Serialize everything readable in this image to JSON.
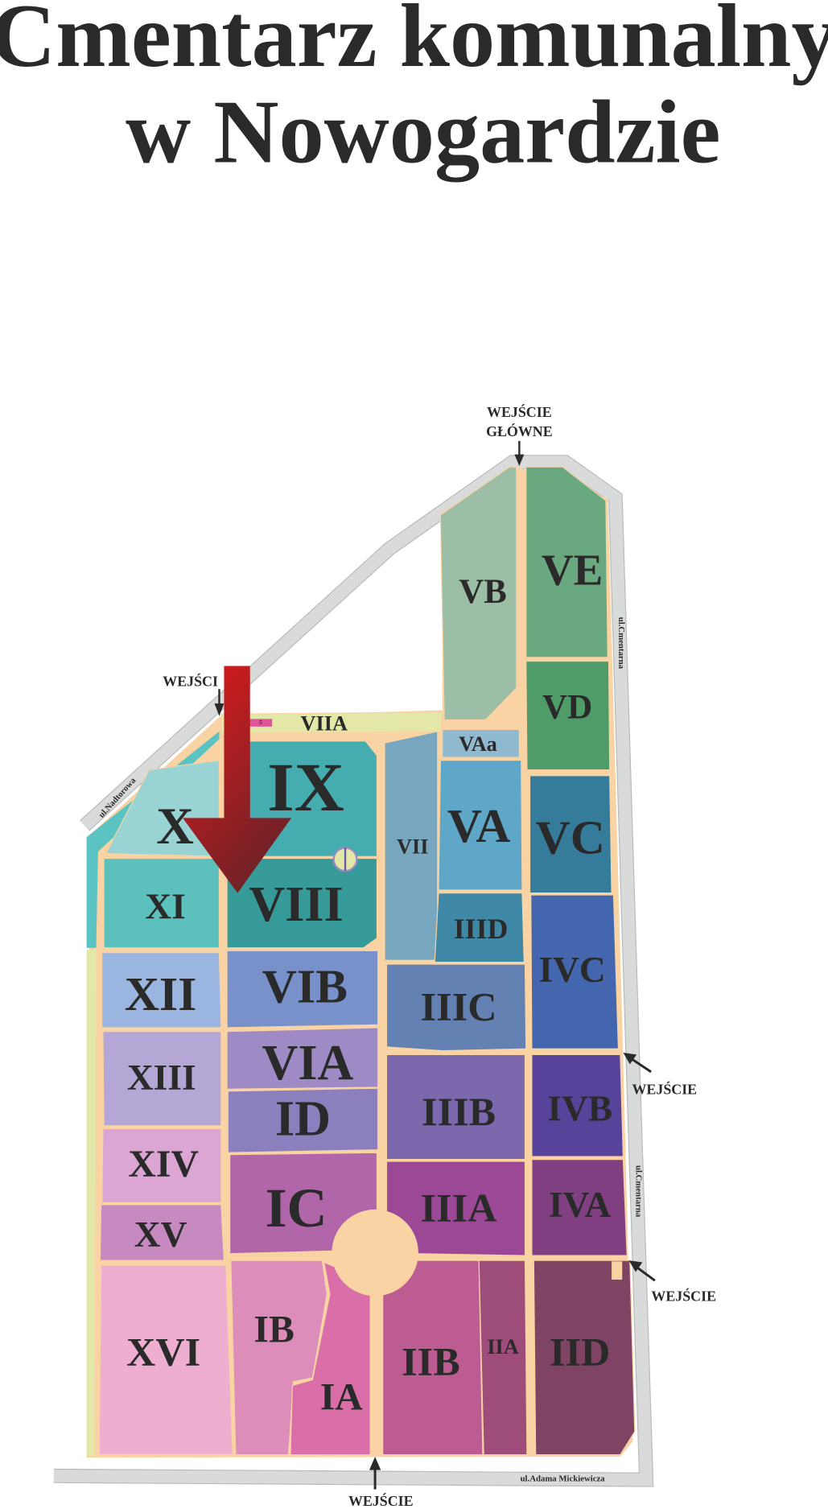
{
  "title": {
    "line1": "Cmentarz komunalny",
    "line2": "w Nowogardzie"
  },
  "colors": {
    "paths": "#f9d3a3",
    "road": "#d9dada",
    "arrow": "#c0181c",
    "plot_marker": "#e0559a"
  },
  "entrances": {
    "main_line1": "WEJŚCIE",
    "main_line2": "GŁÓWNE",
    "northwest": "WEJŚCI",
    "east_upper": "WEJŚCIE",
    "east_lower": "WEJŚCIE",
    "south": "WEJŚCIE"
  },
  "streets": {
    "nadtorowa": "ul.Nadtorowa",
    "cmentarna_upper": "ul.Cmentarna",
    "cmentarna_lower": "ul.Cmentarna",
    "mickiewicza": "ul.Adama Mickiewicza"
  },
  "marker": {
    "icon": "red-down-arrow-location-icon",
    "plot_label": "5"
  },
  "sections": {
    "VB": {
      "label": "VB",
      "color": "#9dbea6"
    },
    "VE": {
      "label": "VE",
      "color": "#6aa87f"
    },
    "VD": {
      "label": "VD",
      "color": "#4f9c68"
    },
    "VIIA": {
      "label": "VIIA",
      "color": "#e3e8a8"
    },
    "VAa": {
      "label": "VAa",
      "color": "#8fb9cf"
    },
    "VA": {
      "label": "VA",
      "color": "#5fa7c9"
    },
    "VC": {
      "label": "VC",
      "color": "#357c9b"
    },
    "VII": {
      "label": "VII",
      "color": "#79a6bf"
    },
    "IX": {
      "label": "IX",
      "color": "#45acb0"
    },
    "X": {
      "label": "X",
      "color": "#99d3d4"
    },
    "XI": {
      "label": "XI",
      "color": "#5cc0bd"
    },
    "VIII": {
      "label": "VIII",
      "color": "#369a98"
    },
    "IIID": {
      "label": "IIID",
      "color": "#3f88a6"
    },
    "IVC": {
      "label": "IVC",
      "color": "#4466ae"
    },
    "XII": {
      "label": "XII",
      "color": "#99b5e0"
    },
    "VIB": {
      "label": "VIB",
      "color": "#7891cb"
    },
    "IIIC": {
      "label": "IIIC",
      "color": "#6381b3"
    },
    "XIII": {
      "label": "XIII",
      "color": "#b4a6d5"
    },
    "VIA": {
      "label": "VIA",
      "color": "#9e8ac5"
    },
    "ID": {
      "label": "ID",
      "color": "#8b7fbd"
    },
    "IIIB": {
      "label": "IIIB",
      "color": "#7b68ad"
    },
    "IVB": {
      "label": "IVB",
      "color": "#57449a"
    },
    "XIV": {
      "label": "XIV",
      "color": "#dca6d4"
    },
    "IC": {
      "label": "IC",
      "color": "#b066a8"
    },
    "IIIA": {
      "label": "IIIA",
      "color": "#9b4996"
    },
    "IVA": {
      "label": "IVA",
      "color": "#7f3f80"
    },
    "XV": {
      "label": "XV",
      "color": "#c78ac0"
    },
    "XVI": {
      "label": "XVI",
      "color": "#eeaed0"
    },
    "IB": {
      "label": "IB",
      "color": "#dc8db9"
    },
    "IA": {
      "label": "IA",
      "color": "#d96ea9"
    },
    "IIB": {
      "label": "IIB",
      "color": "#bd5b93"
    },
    "IIA": {
      "label": "IIA",
      "color": "#9e4c79"
    },
    "IID": {
      "label": "IID",
      "color": "#7f4363"
    }
  }
}
